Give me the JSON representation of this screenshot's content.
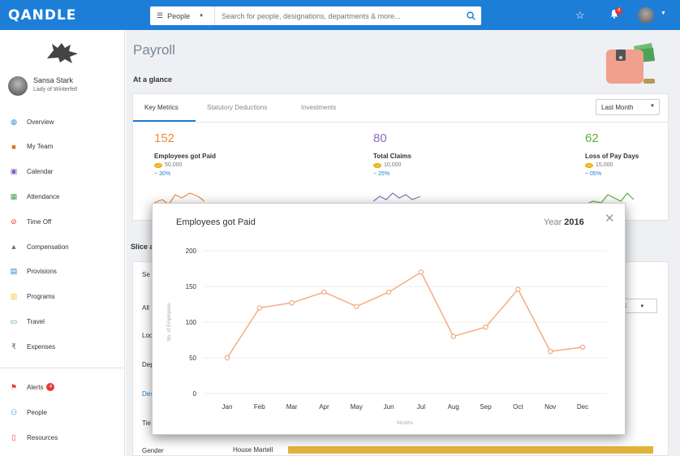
{
  "app": {
    "logo": "QANDLE"
  },
  "search": {
    "scope": "People",
    "placeholder": "Search for people, designations, departments & more..."
  },
  "topbar": {
    "notification_count": "4"
  },
  "user": {
    "name": "Sansa Stark",
    "title": "Lady of Winterfell"
  },
  "sidebar": {
    "items": [
      {
        "label": "Overview",
        "icon": "globe-icon",
        "color": "#1d7ed8"
      },
      {
        "label": "My Team",
        "icon": "team-icon",
        "color": "#ef6c00"
      },
      {
        "label": "Calendar",
        "icon": "calendar-icon",
        "color": "#7e57c2"
      },
      {
        "label": "Attendance",
        "icon": "attendance-icon",
        "color": "#43a047"
      },
      {
        "label": "Time Off",
        "icon": "time-off-icon",
        "color": "#e53935"
      },
      {
        "label": "Compensation",
        "icon": "compensation-icon",
        "color": "#757575"
      },
      {
        "label": "Provisions",
        "icon": "provisions-icon",
        "color": "#1d7ed8"
      },
      {
        "label": "Programs",
        "icon": "programs-icon",
        "color": "#fbc02d"
      },
      {
        "label": "Travel",
        "icon": "travel-icon",
        "color": "#43a047"
      },
      {
        "label": "Expenses",
        "icon": "rupee-icon",
        "color": "#555555"
      }
    ],
    "bottom_items": [
      {
        "label": "Alerts",
        "icon": "flag-icon",
        "color": "#e53935",
        "badge": "4"
      },
      {
        "label": "People",
        "icon": "people-icon",
        "color": "#1d7ed8"
      },
      {
        "label": "Resources",
        "icon": "resources-icon",
        "color": "#e53935"
      }
    ]
  },
  "page": {
    "title": "Payroll",
    "section": "At a glance",
    "slice_section": "Slice a"
  },
  "tabs": [
    "Key Metrics",
    "Statutory Deductions",
    "Investments"
  ],
  "period": "Last Month",
  "metrics": [
    {
      "value": "152",
      "label": "Employees got Paid",
      "amount": "50,000",
      "change": "~ 30%",
      "color": "#f0883a"
    },
    {
      "value": "80",
      "label": "Total Claims",
      "amount": "10,000",
      "change": "~ 25%",
      "color": "#8e6bbf"
    },
    {
      "value": "62",
      "label": "Loss of Pay Days",
      "amount": "15,000",
      "change": "~ 05%",
      "color": "#5cae3e"
    }
  ],
  "background": {
    "filter_items": [
      "Se",
      "All",
      "Loc",
      "Dep",
      "Des",
      "Tie",
      "Gender"
    ],
    "select_label": "out",
    "house_label": "House Martell"
  },
  "modal": {
    "title": "Employees got Paid",
    "year_label": "Year",
    "year_value": "2016",
    "close": "✕"
  },
  "chart_data": {
    "type": "line",
    "title": "Employees got Paid",
    "xlabel": "Months",
    "ylabel": "No. of Employees",
    "categories": [
      "Jan",
      "Feb",
      "Mar",
      "Apr",
      "May",
      "Jun",
      "Jul",
      "Aug",
      "Sep",
      "Oct",
      "Nov",
      "Dec"
    ],
    "values": [
      50,
      120,
      127,
      142,
      122,
      142,
      170,
      80,
      93,
      146,
      59,
      65
    ],
    "ylim": [
      0,
      200
    ],
    "yticks": [
      0,
      50,
      100,
      150,
      200
    ],
    "grid": true,
    "color": "#f3a77a"
  }
}
